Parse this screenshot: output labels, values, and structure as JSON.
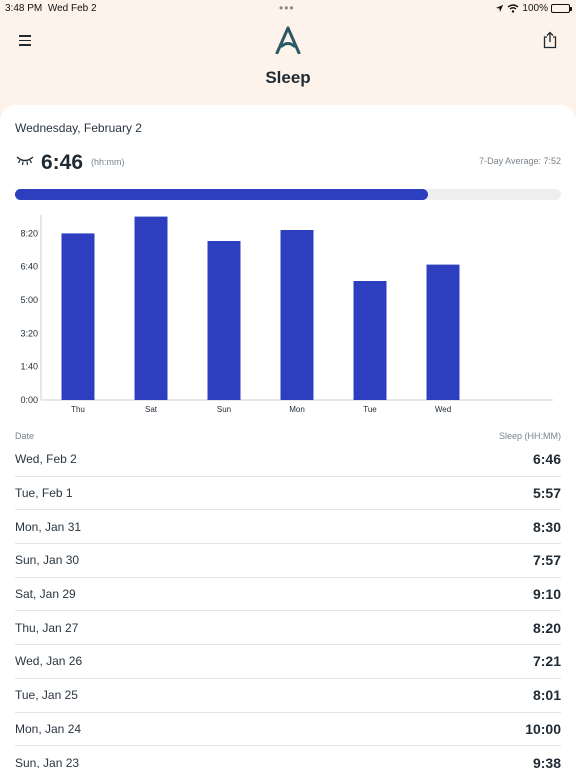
{
  "status_bar": {
    "time": "3:48 PM",
    "date": "Wed Feb 2",
    "battery": "100%",
    "battery_level": 1.0
  },
  "header": {
    "title": "Sleep",
    "logo_icon": "logo-a-icon",
    "menu_icon": "hamburger-icon",
    "share_icon": "share-icon"
  },
  "summary": {
    "date": "Wednesday, February 2",
    "value": "6:46",
    "unit": "(hh:mm)",
    "average": "7-Day Average: 7:52",
    "progress_fraction": 0.756
  },
  "chart_data": {
    "type": "bar",
    "categories": [
      "Thu",
      "Sat",
      "Sun",
      "Mon",
      "Tue",
      "Wed"
    ],
    "values": [
      8.33,
      9.17,
      7.95,
      8.5,
      5.95,
      6.77
    ],
    "y_ticks": [
      "0:00",
      "1:40",
      "3:20",
      "5:00",
      "6:40",
      "8:20"
    ],
    "ylim": [
      0,
      9.5
    ],
    "color": "#2d3fbf"
  },
  "list": {
    "col_date": "Date",
    "col_sleep": "Sleep (HH:MM)",
    "rows": [
      {
        "date": "Wed, Feb 2",
        "value": "6:46"
      },
      {
        "date": "Tue, Feb 1",
        "value": "5:57"
      },
      {
        "date": "Mon, Jan 31",
        "value": "8:30"
      },
      {
        "date": "Sun, Jan 30",
        "value": "7:57"
      },
      {
        "date": "Sat, Jan 29",
        "value": "9:10"
      },
      {
        "date": "Thu, Jan 27",
        "value": "8:20"
      },
      {
        "date": "Wed, Jan 26",
        "value": "7:21"
      },
      {
        "date": "Tue, Jan 25",
        "value": "8:01"
      },
      {
        "date": "Mon, Jan 24",
        "value": "10:00"
      },
      {
        "date": "Sun, Jan 23",
        "value": "9:38"
      }
    ]
  }
}
